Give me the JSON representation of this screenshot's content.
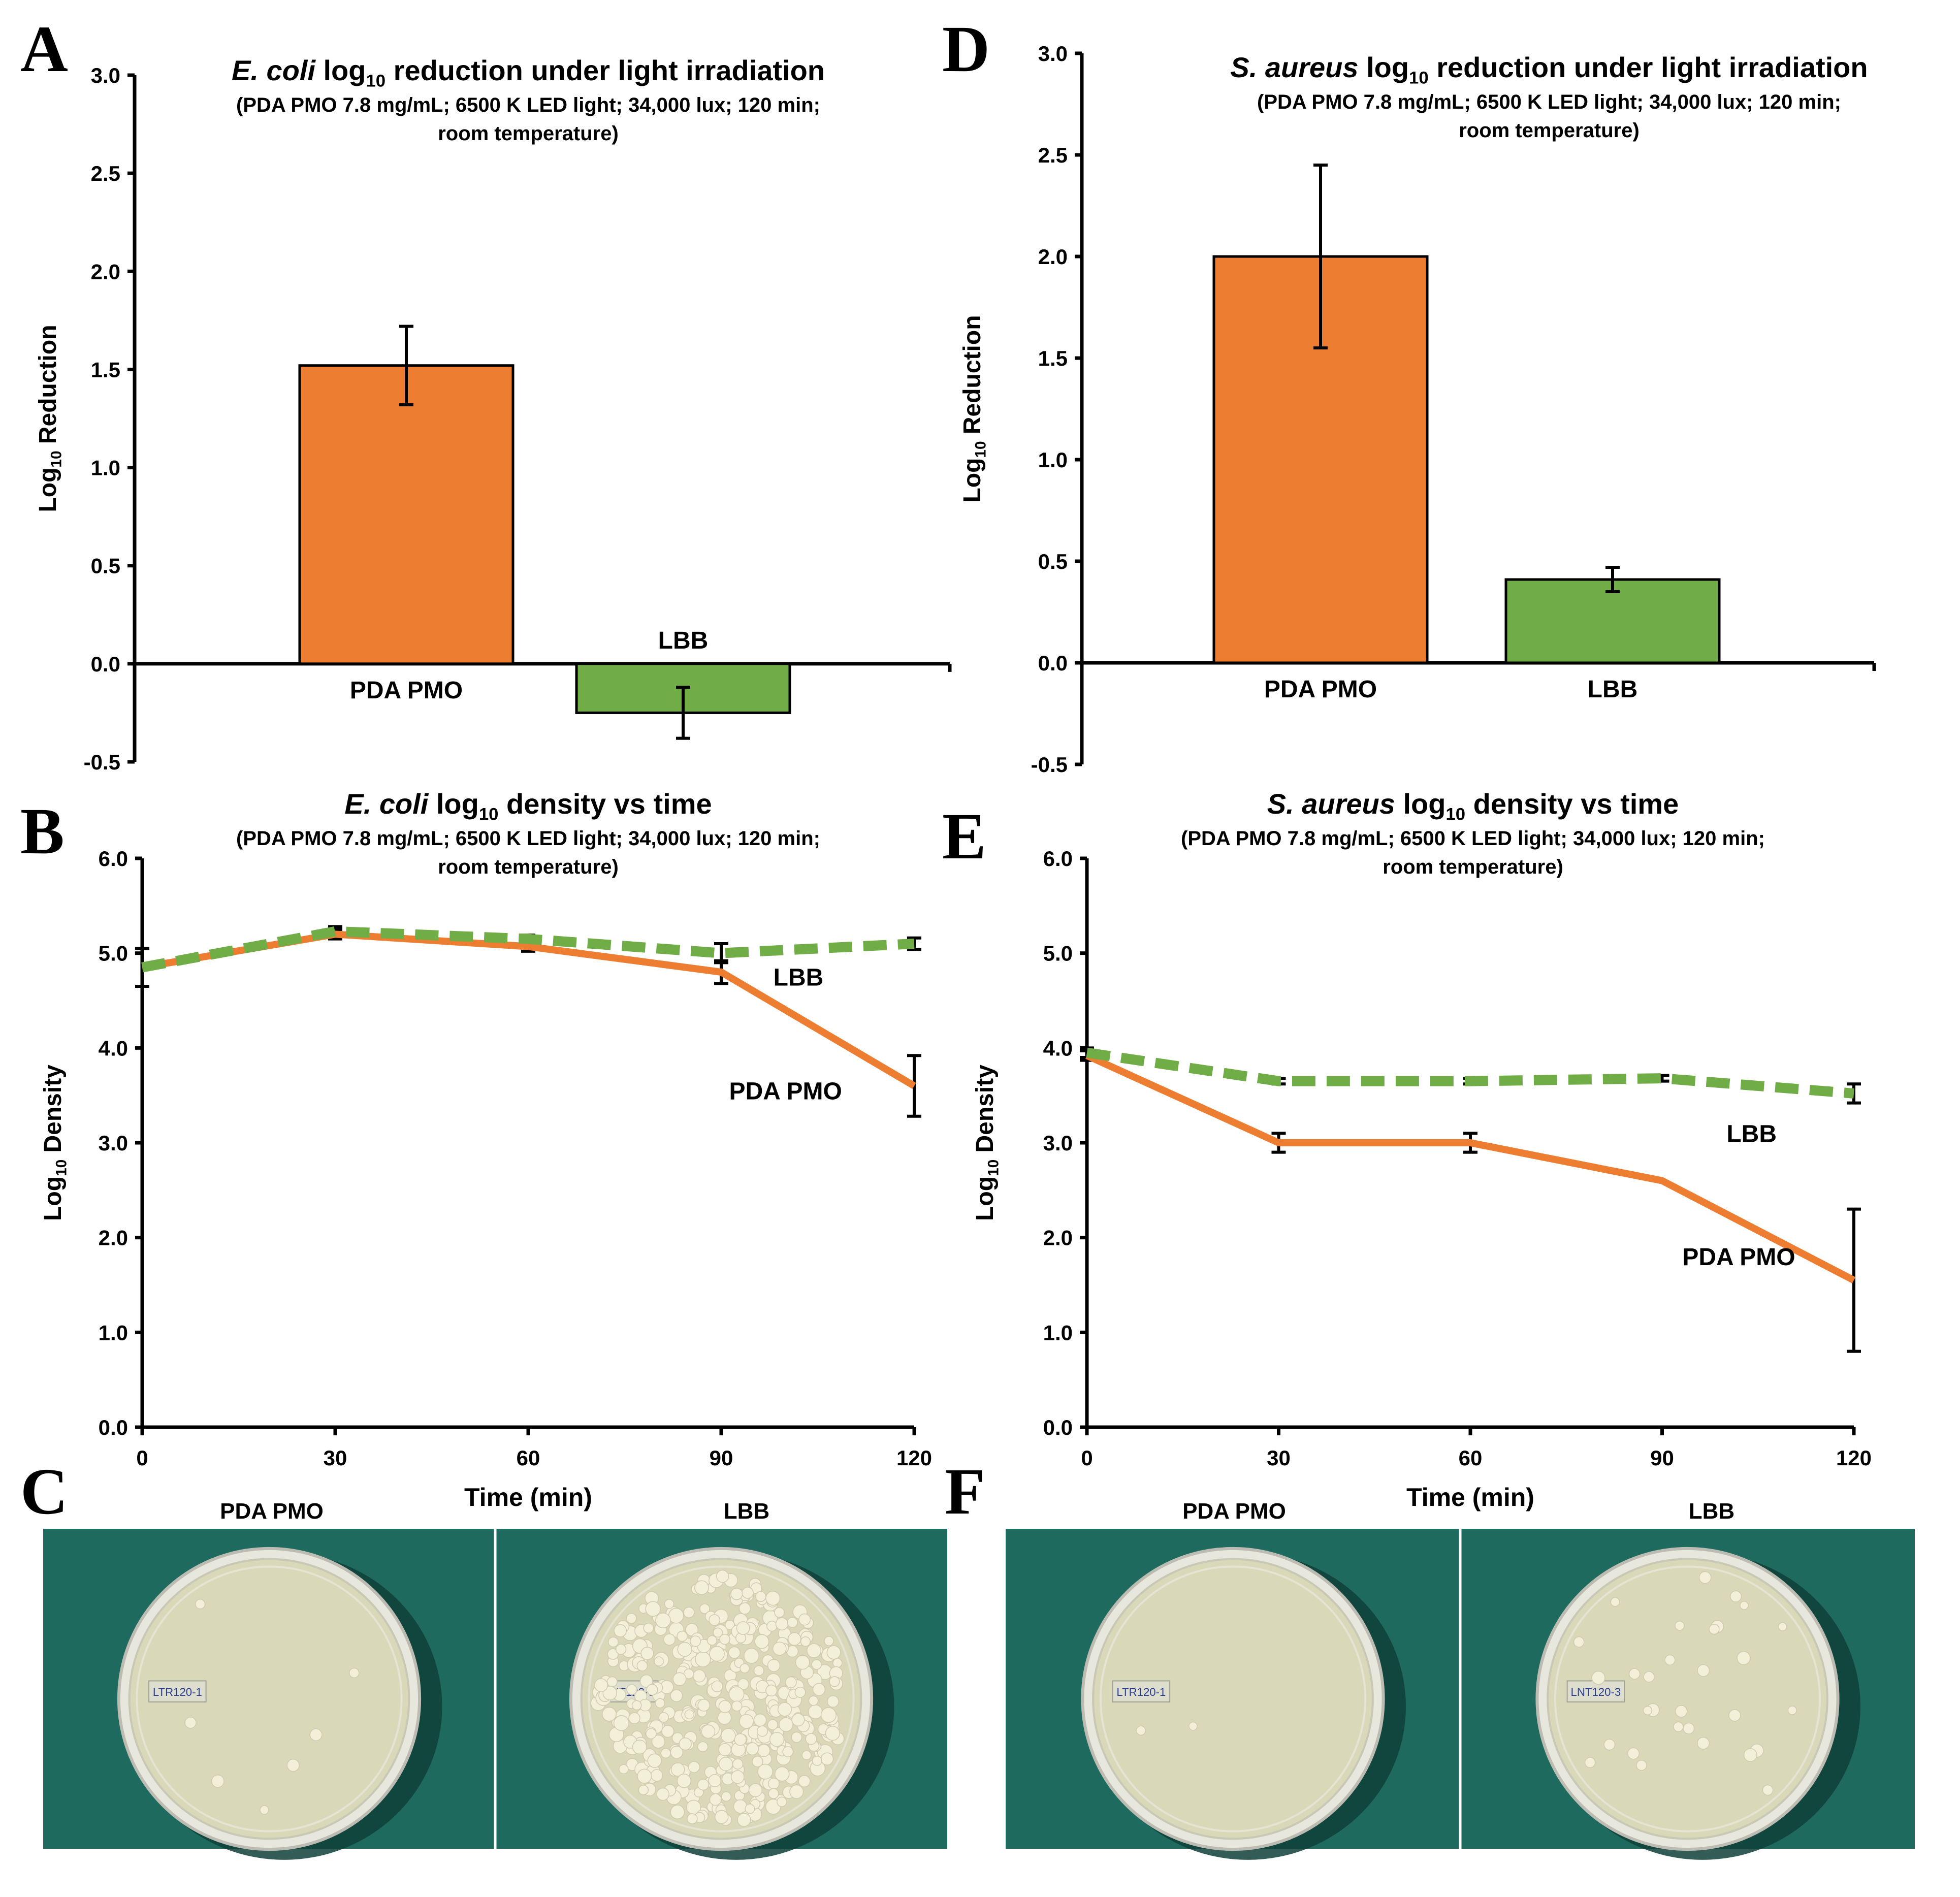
{
  "chart_data": [
    {
      "panel": "A",
      "type": "bar",
      "title_italic": "E. coli",
      "title_rest": "reduction under light irradiation",
      "title_log": "log",
      "title_sub": "10",
      "subtitle_line1": "(PDA PMO 7.8 mg/mL; 6500 K LED light; 34,000 lux; 120 min;",
      "subtitle_line2": "room temperature)",
      "ylabel_main": "Log",
      "ylabel_sub": "10",
      "ylabel_rest": " Reduction",
      "ylim": [
        -0.5,
        3.0
      ],
      "yticks": [
        "-0.5",
        "0.0",
        "0.5",
        "1.0",
        "1.5",
        "2.0",
        "2.5",
        "3.0"
      ],
      "categories": [
        "PDA PMO",
        "LBB"
      ],
      "values": [
        1.52,
        -0.25
      ],
      "errors": [
        0.2,
        0.13
      ],
      "colors": [
        "#ED7D31",
        "#70AD47"
      ]
    },
    {
      "panel": "D",
      "type": "bar",
      "title_italic": "S. aureus",
      "title_rest": "reduction under light irradiation",
      "title_log": "log",
      "title_sub": "10",
      "subtitle_line1": "(PDA PMO 7.8 mg/mL; 6500 K LED light; 34,000 lux; 120 min;",
      "subtitle_line2": "room temperature)",
      "ylabel_main": "Log",
      "ylabel_sub": "10",
      "ylabel_rest": " Reduction",
      "ylim": [
        -0.5,
        3.0
      ],
      "yticks": [
        "-0.5",
        "0.0",
        "0.5",
        "1.0",
        "1.5",
        "2.0",
        "2.5",
        "3.0"
      ],
      "categories": [
        "PDA PMO",
        "LBB"
      ],
      "values": [
        2.0,
        0.41
      ],
      "errors": [
        0.45,
        0.06
      ],
      "colors": [
        "#ED7D31",
        "#70AD47"
      ]
    },
    {
      "panel": "B",
      "type": "line",
      "title_italic": "E. coli",
      "title_rest": "density vs time",
      "title_log": "log",
      "title_sub": "10",
      "subtitle_line1": "(PDA PMO 7.8 mg/mL; 6500 K LED light; 34,000 lux; 120 min;",
      "subtitle_line2": "room temperature)",
      "ylabel_main": "Log",
      "ylabel_sub": "10",
      "ylabel_rest": " Density",
      "xlabel": "Time (min)",
      "xlim": [
        0,
        120
      ],
      "ylim": [
        0.0,
        6.0
      ],
      "xticks": [
        "0",
        "30",
        "60",
        "90",
        "120"
      ],
      "yticks": [
        "0.0",
        "1.0",
        "2.0",
        "3.0",
        "4.0",
        "5.0",
        "6.0"
      ],
      "x": [
        0,
        30,
        60,
        90,
        120
      ],
      "series": [
        {
          "name": "PDA PMO",
          "values": [
            4.85,
            5.2,
            5.07,
            4.8,
            3.6
          ],
          "errors": [
            0.2,
            0.05,
            0.05,
            0.12,
            0.32
          ],
          "color": "#ED7D31",
          "dash": false
        },
        {
          "name": "LBB",
          "values": [
            4.85,
            5.23,
            5.15,
            5.0,
            5.1
          ],
          "errors": [
            0.2,
            0.05,
            0.04,
            0.1,
            0.06
          ],
          "color": "#70AD47",
          "dash": true
        }
      ],
      "annotations": [
        {
          "text": "LBB",
          "x": 102,
          "y": 4.75
        },
        {
          "text": "PDA PMO",
          "x": 100,
          "y": 3.55
        }
      ]
    },
    {
      "panel": "E",
      "type": "line",
      "title_italic": "S. aureus",
      "title_rest": "density vs time",
      "title_log": "log",
      "title_sub": "10",
      "subtitle_line1": "(PDA PMO 7.8 mg/mL; 6500 K LED light; 34,000 lux; 120 min;",
      "subtitle_line2": "room temperature)",
      "ylabel_main": "Log",
      "ylabel_sub": "10",
      "ylabel_rest": " Density",
      "xlabel": "Time (min)",
      "xlim": [
        0,
        120
      ],
      "ylim": [
        0.0,
        6.0
      ],
      "xticks": [
        "0",
        "30",
        "60",
        "90",
        "120"
      ],
      "yticks": [
        "0.0",
        "1.0",
        "2.0",
        "3.0",
        "4.0",
        "5.0",
        "6.0"
      ],
      "x": [
        0,
        30,
        60,
        90,
        120
      ],
      "series": [
        {
          "name": "PDA PMO",
          "values": [
            3.92,
            3.0,
            3.0,
            2.6,
            1.55
          ],
          "errors": [
            0.05,
            0.1,
            0.1,
            0.0,
            0.75
          ],
          "color": "#ED7D31",
          "dash": false
        },
        {
          "name": "LBB",
          "values": [
            3.95,
            3.65,
            3.65,
            3.68,
            3.52
          ],
          "errors": [
            0.05,
            0.03,
            0.03,
            0.03,
            0.1
          ],
          "color": "#70AD47",
          "dash": true
        }
      ],
      "annotations": [
        {
          "text": "LBB",
          "x": 104,
          "y": 3.1
        },
        {
          "text": "PDA PMO",
          "x": 102,
          "y": 1.8
        }
      ]
    }
  ],
  "panels": {
    "A": "A",
    "B": "B",
    "C": "C",
    "D": "D",
    "E": "E",
    "F": "F"
  },
  "photos": {
    "C": {
      "left_label": "PDA PMO",
      "right_label": "LBB",
      "left_plate_text": "LTR120-1",
      "right_plate_text": "LNT120-3",
      "left_colonies": 7,
      "right_colonies": 400
    },
    "F": {
      "left_label": "PDA PMO",
      "right_label": "LBB",
      "left_plate_text": "LTR120-1",
      "right_plate_text": "LNT120-3",
      "left_colonies": 2,
      "right_colonies": 30
    }
  },
  "colors": {
    "orange": "#ED7D31",
    "green": "#70AD47",
    "photo_bg": "#1E6A5E",
    "agar": "#DCDCB9"
  }
}
